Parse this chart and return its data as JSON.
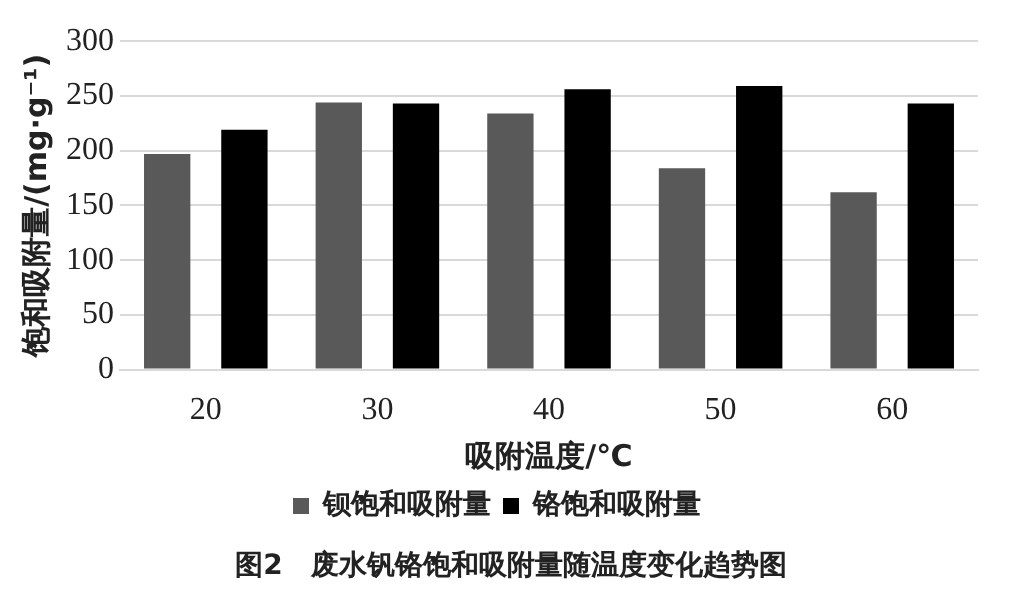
{
  "chart_data": {
    "type": "bar",
    "categories": [
      "20",
      "30",
      "40",
      "50",
      "60"
    ],
    "series": [
      {
        "name": "钡饱和吸附量",
        "color": "#595959",
        "values": [
          197,
          244,
          234,
          184,
          162
        ]
      },
      {
        "name": "铬饱和吸附量",
        "color": "#000000",
        "values": [
          219,
          243,
          256,
          259,
          243
        ]
      }
    ],
    "xlabel": "吸附温度/℃",
    "ylabel": "饱和吸附量/(mg·g⁻¹)",
    "ylim": [
      0,
      300
    ],
    "yticks": [
      0,
      50,
      100,
      150,
      200,
      250,
      300
    ],
    "grid": "y",
    "legend": "bottom",
    "annotations": [
      "图2　废水钒铬饱和吸附量随温度变化趋势图"
    ]
  }
}
